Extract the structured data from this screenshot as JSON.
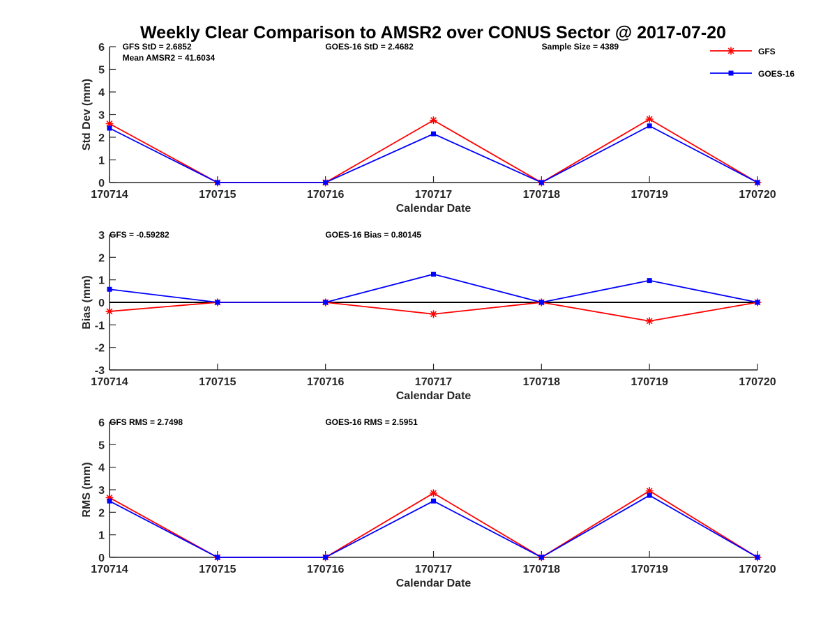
{
  "title": "Weekly Clear Comparison to AMSR2 over CONUS Sector @ 2017-07-20",
  "legend": {
    "placement": "top-right",
    "entries": [
      {
        "label": "GFS",
        "color": "#ff0000",
        "marker": "asterisk"
      },
      {
        "label": "GOES-16",
        "color": "#0000ff",
        "marker": "square"
      }
    ]
  },
  "chart_data": [
    {
      "type": "line",
      "ylabel": "Std Dev (mm)",
      "xlabel": "Calendar Date",
      "categories": [
        "170714",
        "170715",
        "170716",
        "170717",
        "170718",
        "170719",
        "170720"
      ],
      "ylim": [
        0,
        6
      ],
      "yticks": [
        "0",
        "1",
        "2",
        "3",
        "4",
        "5",
        "6"
      ],
      "zero_line": false,
      "grid": false,
      "series": [
        {
          "name": "GFS",
          "color": "#ff0000",
          "marker": "asterisk",
          "values": [
            2.6,
            0.0,
            0.0,
            2.75,
            0.0,
            2.8,
            0.0
          ]
        },
        {
          "name": "GOES-16",
          "color": "#0000ff",
          "marker": "square",
          "values": [
            2.4,
            0.0,
            0.0,
            2.15,
            0.0,
            2.5,
            0.0
          ]
        }
      ],
      "annotations": [
        {
          "text": "GFS StD = 2.6852",
          "x_frac": 0.02,
          "row": 0
        },
        {
          "text": "Mean AMSR2 = 41.6034",
          "x_frac": 0.02,
          "row": 1
        },
        {
          "text": "GOES-16 StD = 2.4682",
          "x_frac": 0.333,
          "row": 0
        },
        {
          "text": "Sample Size = 4389",
          "x_frac": 0.667,
          "row": 0
        }
      ]
    },
    {
      "type": "line",
      "ylabel": "Bias (mm)",
      "xlabel": "Calendar Date",
      "categories": [
        "170714",
        "170715",
        "170716",
        "170717",
        "170718",
        "170719",
        "170720"
      ],
      "ylim": [
        -3,
        3
      ],
      "yticks": [
        "-3",
        "-2",
        "-1",
        "0",
        "1",
        "2",
        "3"
      ],
      "zero_line": true,
      "grid": false,
      "series": [
        {
          "name": "GFS",
          "color": "#ff0000",
          "marker": "asterisk",
          "values": [
            -0.4,
            0.0,
            0.0,
            -0.52,
            0.0,
            -0.83,
            0.0
          ]
        },
        {
          "name": "GOES-16",
          "color": "#0000ff",
          "marker": "square",
          "values": [
            0.58,
            0.0,
            0.0,
            1.25,
            0.0,
            0.97,
            0.0
          ]
        }
      ],
      "annotations": [
        {
          "text": "GFS = -0.59282",
          "x_frac": 0.0,
          "row": 0
        },
        {
          "text": "GOES-16 Bias  = 0.80145",
          "x_frac": 0.333,
          "row": 0
        }
      ]
    },
    {
      "type": "line",
      "ylabel": "RMS (mm)",
      "xlabel": "Calendar Date",
      "categories": [
        "170714",
        "170715",
        "170716",
        "170717",
        "170718",
        "170719",
        "170720"
      ],
      "ylim": [
        0,
        6
      ],
      "yticks": [
        "0",
        "1",
        "2",
        "3",
        "4",
        "5",
        "6"
      ],
      "zero_line": false,
      "grid": false,
      "series": [
        {
          "name": "GFS",
          "color": "#ff0000",
          "marker": "asterisk",
          "values": [
            2.65,
            0.0,
            0.0,
            2.85,
            0.0,
            2.95,
            0.0
          ]
        },
        {
          "name": "GOES-16",
          "color": "#0000ff",
          "marker": "square",
          "values": [
            2.5,
            0.0,
            0.0,
            2.5,
            0.0,
            2.75,
            0.0
          ]
        }
      ],
      "annotations": [
        {
          "text": "GFS RMS = 2.7498",
          "x_frac": 0.0,
          "row": 0
        },
        {
          "text": "GOES-16 RMS = 2.5951",
          "x_frac": 0.333,
          "row": 0
        }
      ]
    }
  ]
}
